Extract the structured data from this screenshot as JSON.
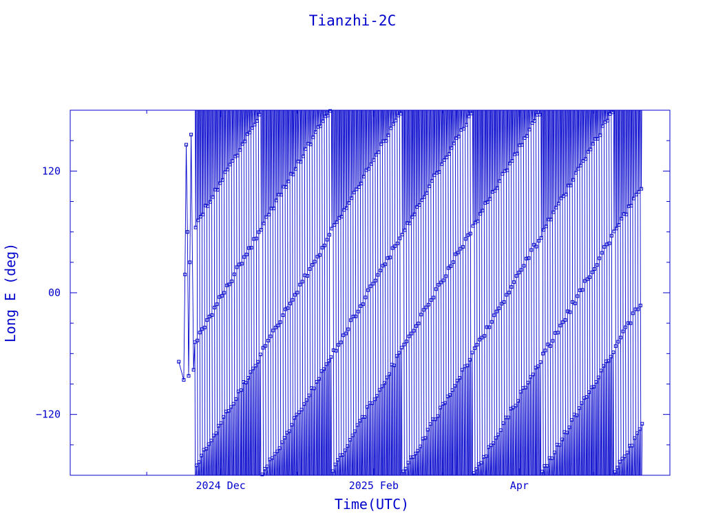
{
  "chart_data": {
    "type": "line",
    "title": "Tianzhi-2C",
    "xlabel": "Time(UTC)",
    "ylabel": "Long E (deg)",
    "x_axis_type": "date",
    "x_range": [
      "2024-10-01",
      "2025-06-01"
    ],
    "y_range": [
      -180,
      180
    ],
    "x_tick_labels": [
      {
        "value": "2024-12-01",
        "label": "2024 Dec"
      },
      {
        "value": "2025-02-01",
        "label": "2025 Feb"
      },
      {
        "value": "2025-04-01",
        "label": "Apr"
      }
    ],
    "y_tick_labels": [
      {
        "value": -120,
        "label": "−120"
      },
      {
        "value": 0,
        "label": "00"
      },
      {
        "value": 120,
        "label": "120"
      }
    ],
    "y_minor_tick_step": 30,
    "x_minor_ticks": [
      "2024-11-01",
      "2025-01-01",
      "2025-03-01",
      "2025-05-01"
    ],
    "grid": false,
    "marker": "square",
    "data_start": "2024-11-14",
    "data_end": "2025-05-21",
    "longitude_drift_per_day_deg": 4.2,
    "samples": [
      [
        "2024-11-14T00:00",
        -68
      ],
      [
        "2024-11-16T00:00",
        -86
      ],
      [
        "2024-11-16T12:00",
        18
      ],
      [
        "2024-11-17T00:00",
        146
      ],
      [
        "2024-11-17T12:00",
        60
      ],
      [
        "2024-11-18T00:00",
        -82
      ],
      [
        "2024-11-18T12:00",
        30
      ],
      [
        "2024-11-19T00:00",
        156
      ],
      [
        "2024-11-20T00:00",
        -76
      ]
    ],
    "color": "#0000cc"
  }
}
